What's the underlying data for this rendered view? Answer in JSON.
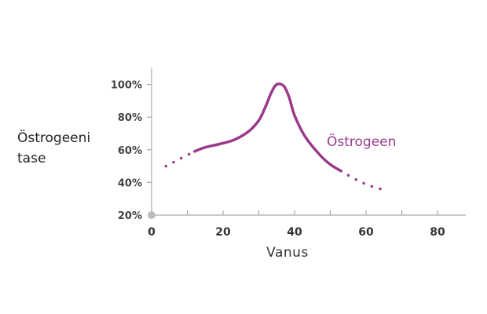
{
  "chart_data": {
    "type": "line",
    "ylabel_lines": [
      "Östrogeeni",
      "tase"
    ],
    "xlabel": "Vanus",
    "x_ticks": [
      0,
      20,
      40,
      60,
      80
    ],
    "y_ticks": [
      "20%",
      "40%",
      "60%",
      "80%",
      "100%"
    ],
    "y_tick_values": [
      20,
      40,
      60,
      80,
      100
    ],
    "xlim": [
      0,
      88
    ],
    "ylim": [
      20,
      110
    ],
    "grid": false,
    "series": [
      {
        "name": "Östrogeen",
        "color": "#9b3a8c",
        "solid": [
          [
            12,
            59
          ],
          [
            15,
            61.5
          ],
          [
            19,
            63.5
          ],
          [
            23,
            66
          ],
          [
            27,
            71
          ],
          [
            30,
            78
          ],
          [
            32,
            87
          ],
          [
            33.5,
            95
          ],
          [
            35,
            100
          ],
          [
            37,
            99
          ],
          [
            38.5,
            92
          ],
          [
            40,
            81
          ],
          [
            43,
            68
          ],
          [
            47,
            57
          ],
          [
            50,
            51
          ],
          [
            53,
            47
          ]
        ],
        "dotted_start": [
          [
            4,
            50
          ],
          [
            8,
            54.5
          ],
          [
            12,
            59
          ]
        ],
        "dotted_end": [
          [
            53,
            47
          ],
          [
            57,
            42
          ],
          [
            61,
            38
          ],
          [
            66,
            35
          ]
        ]
      }
    ]
  },
  "colors": {
    "axis": "#aaaaaa",
    "origin_dot": "#bbbbbb"
  }
}
